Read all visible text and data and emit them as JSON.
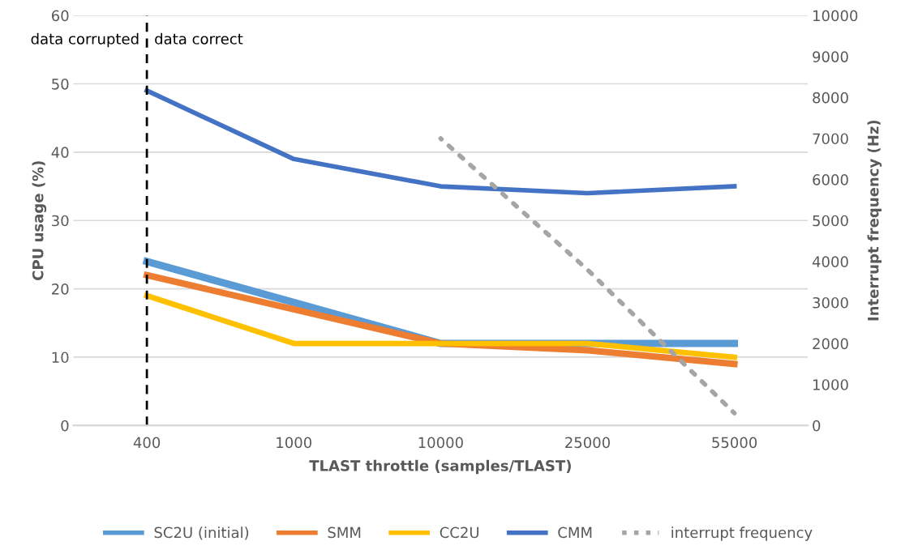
{
  "chart_data": {
    "type": "line",
    "categories": [
      "400",
      "1000",
      "10000",
      "25000",
      "55000"
    ],
    "xlabel": "TLAST throttle (samples/TLAST)",
    "ylabel": "CPU usage (%)",
    "y2label": "Interrupt frequency (Hz)",
    "ylim": [
      0,
      60
    ],
    "yticks": [
      0,
      10,
      20,
      30,
      40,
      50,
      60
    ],
    "y2lim": [
      0,
      10000
    ],
    "y2ticks": [
      0,
      1000,
      2000,
      3000,
      4000,
      5000,
      6000,
      7000,
      8000,
      9000,
      10000
    ],
    "grid": "y",
    "legend": "bottom",
    "marker": "none",
    "ref_lines": [
      {
        "axis": "x",
        "value": "400",
        "color": "#000000",
        "line_style": "dashed"
      }
    ],
    "annotations": [
      "data corrupted",
      "data correct"
    ],
    "series": [
      {
        "name": "SC2U (initial)",
        "color": "#5b9bd5",
        "values": [
          24,
          18,
          12,
          12,
          12
        ]
      },
      {
        "name": "SMM",
        "color": "#ed7d31",
        "values": [
          22,
          17,
          12,
          11,
          9
        ]
      },
      {
        "name": "CC2U",
        "color": "#ffc000",
        "values": [
          19,
          12,
          12,
          12,
          10
        ]
      },
      {
        "name": "CMM",
        "color": "#4472c4",
        "values": [
          49,
          39,
          35,
          34,
          35
        ]
      },
      {
        "name": "interrupt frequency",
        "color": "#a5a5a5",
        "axis": "y2",
        "line_style": "dotted",
        "values": [
          null,
          null,
          7000,
          3800,
          300
        ]
      }
    ]
  }
}
